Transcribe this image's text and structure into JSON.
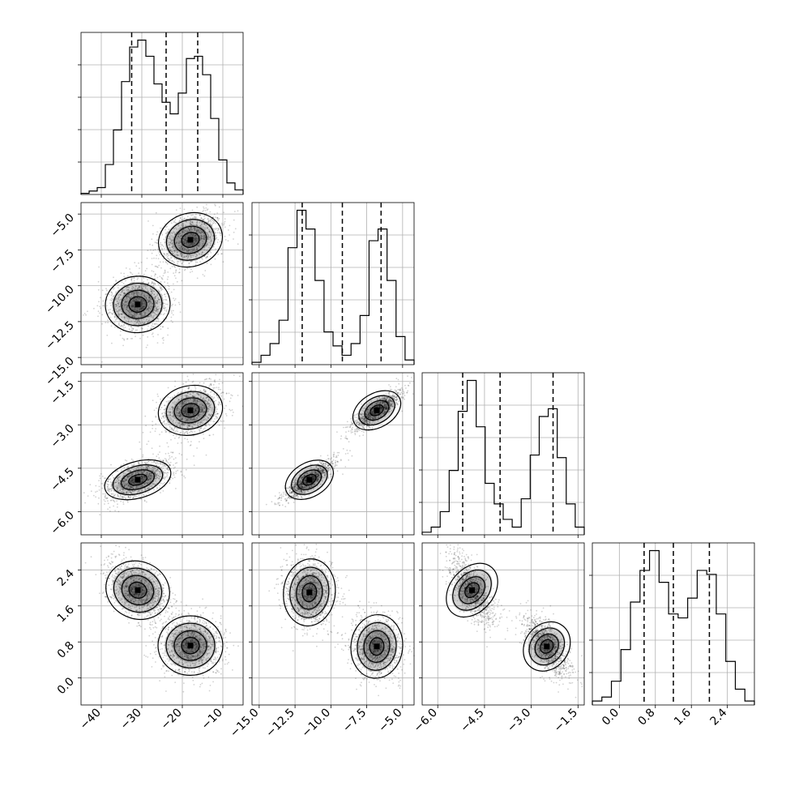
{
  "chart_data": {
    "type": "corner",
    "grid": true,
    "histograms": [
      {
        "parameter": 0,
        "range": [
          -45,
          -5
        ],
        "bin_heights": [
          0.5,
          1.5,
          3,
          13,
          28,
          49,
          64,
          67,
          60,
          48,
          40,
          35,
          44,
          59,
          60,
          52,
          33,
          15,
          5,
          2
        ],
        "quantiles": [
          -32.5,
          -24,
          -16.2
        ]
      },
      {
        "parameter": 1,
        "range": [
          -15.5,
          -4.2
        ],
        "bin_heights": [
          1,
          4,
          9,
          19,
          50,
          66,
          58,
          36,
          14,
          8,
          4,
          9,
          21,
          53,
          58,
          36,
          12,
          2
        ],
        "quantiles": [
          -12.0,
          -9.2,
          -6.5
        ]
      },
      {
        "parameter": 2,
        "range": [
          -6.5,
          -1.3
        ],
        "bin_heights": [
          1,
          3,
          9,
          25,
          48,
          60,
          42,
          20,
          12,
          6,
          3,
          14,
          31,
          46,
          49,
          30,
          12,
          3
        ],
        "quantiles": [
          -5.2,
          -4.0,
          -2.3
        ]
      },
      {
        "parameter": 3,
        "range": [
          -0.6,
          3.0
        ],
        "bin_heights": [
          1,
          2,
          6,
          14,
          26,
          34,
          39,
          31,
          23,
          22,
          27,
          34,
          33,
          23,
          11,
          4,
          1
        ],
        "quantiles": [
          0.55,
          1.2,
          2.0
        ]
      }
    ],
    "scatter_panels": [
      {
        "x_param": 0,
        "y_param": 1,
        "xlim": [
          -45,
          -5
        ],
        "ylim": [
          -15.5,
          -4.2
        ],
        "clusters": [
          {
            "mean": [
              -31,
              -11.3
            ],
            "sx": 4.0,
            "sy": 1.0,
            "rho": 0.1,
            "n": 1100
          },
          {
            "mean": [
              -18,
              -6.8
            ],
            "sx": 4.0,
            "sy": 1.0,
            "rho": 0.4,
            "n": 1100
          }
        ]
      },
      {
        "x_param": 0,
        "y_param": 2,
        "xlim": [
          -45,
          -5
        ],
        "ylim": [
          -6.8,
          -1.2
        ],
        "clusters": [
          {
            "mean": [
              -31,
              -4.9
            ],
            "sx": 4.2,
            "sy": 0.35,
            "rho": 0.55,
            "n": 1100
          },
          {
            "mean": [
              -18,
              -2.5
            ],
            "sx": 4.0,
            "sy": 0.45,
            "rho": 0.3,
            "n": 1100
          }
        ]
      },
      {
        "x_param": 1,
        "y_param": 2,
        "xlim": [
          -15.5,
          -4.2
        ],
        "ylim": [
          -6.8,
          -1.2
        ],
        "clusters": [
          {
            "mean": [
              -11.5,
              -4.9
            ],
            "sx": 0.9,
            "sy": 0.35,
            "rho": 0.85,
            "n": 1100
          },
          {
            "mean": [
              -6.8,
              -2.5
            ],
            "sx": 0.9,
            "sy": 0.35,
            "rho": 0.85,
            "n": 1100
          }
        ]
      },
      {
        "x_param": 0,
        "y_param": 3,
        "xlim": [
          -45,
          -5
        ],
        "ylim": [
          -0.6,
          3.0
        ],
        "clusters": [
          {
            "mean": [
              -31,
              1.95
            ],
            "sx": 4.0,
            "sy": 0.35,
            "rho": -0.5,
            "n": 1100
          },
          {
            "mean": [
              -18,
              0.72
            ],
            "sx": 4.0,
            "sy": 0.33,
            "rho": 0.0,
            "n": 1100
          }
        ]
      },
      {
        "x_param": 1,
        "y_param": 3,
        "xlim": [
          -15.5,
          -4.2
        ],
        "ylim": [
          -0.6,
          3.0
        ],
        "clusters": [
          {
            "mean": [
              -11.5,
              1.9
            ],
            "sx": 0.9,
            "sy": 0.38,
            "rho": -0.1,
            "n": 1100
          },
          {
            "mean": [
              -6.8,
              0.7
            ],
            "sx": 0.9,
            "sy": 0.36,
            "rho": -0.1,
            "n": 1100
          }
        ]
      },
      {
        "x_param": 2,
        "y_param": 3,
        "xlim": [
          -6.5,
          -1.3
        ],
        "ylim": [
          -0.6,
          3.0
        ],
        "clusters": [
          {
            "mean": [
              -4.9,
              1.95
            ],
            "sx": 0.35,
            "sy": 0.38,
            "rho": -0.65,
            "n": 1100
          },
          {
            "mean": [
              -2.5,
              0.7
            ],
            "sx": 0.35,
            "sy": 0.33,
            "rho": -0.65,
            "n": 1100
          }
        ]
      }
    ],
    "axis_ticks": {
      "x_param0": [
        "−40",
        "−30",
        "−20",
        "−10"
      ],
      "x_param1": [
        "−15.0",
        "−12.5",
        "−10.0",
        "−7.5",
        "−5.0"
      ],
      "x_param2": [
        "−6.0",
        "−4.5",
        "−3.0",
        "−1.5"
      ],
      "x_param3": [
        "0.0",
        "0.8",
        "1.6",
        "2.4"
      ],
      "y_param1": [
        "−5.0",
        "−7.5",
        "−10.0",
        "−12.5",
        "−15.0"
      ],
      "y_param2": [
        "−1.5",
        "−3.0",
        "−4.5",
        "−6.0"
      ],
      "y_param3": [
        "2.4",
        "1.6",
        "0.8",
        "0.0"
      ]
    },
    "axis_tick_values": {
      "param0": [
        -40,
        -30,
        -20,
        -10
      ],
      "param1": [
        -15,
        -12.5,
        -10,
        -7.5,
        -5
      ],
      "param2": [
        -6,
        -4.5,
        -3,
        -1.5
      ],
      "param3": [
        0,
        0.8,
        1.6,
        2.4
      ]
    }
  }
}
